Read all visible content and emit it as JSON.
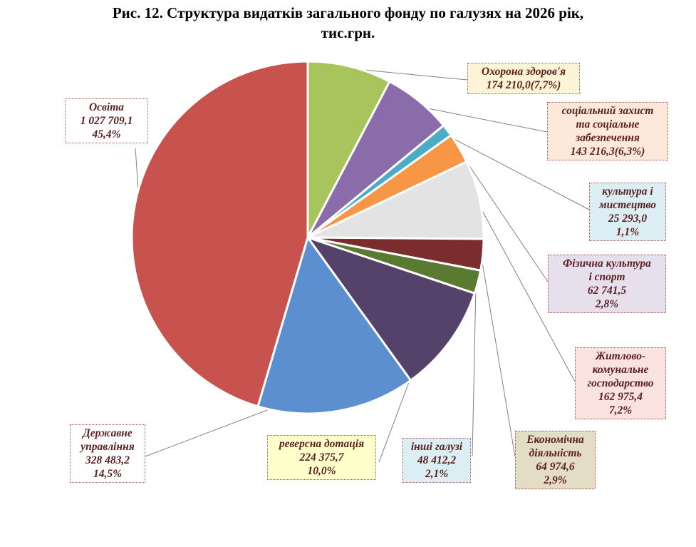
{
  "title": {
    "line1": "Рис. 12. Структура видатків загального фонду по галузях на 2026 рік,",
    "line2": "тис.грн."
  },
  "chart_data": {
    "type": "pie",
    "title": "Рис. 12. Структура видатків загального фонду по галузях на 2026 рік, тис.грн.",
    "slices": [
      {
        "name": "Охорона здоров'я",
        "value": 174210.0,
        "percent": 7.7,
        "color": "#a8c45c",
        "label_lines": [
          "Охорона здоров'я",
          "174 210,0(7,7%)"
        ]
      },
      {
        "name": "соціальний захист та соціальне забезпечення",
        "value": 143216.3,
        "percent": 6.3,
        "color": "#8a6cab",
        "label_lines": [
          "соціальний захист",
          "та соціальне",
          "забезпечення",
          "143 216,3(6,3%)"
        ]
      },
      {
        "name": "культура і мистецтво",
        "value": 25293.0,
        "percent": 1.1,
        "color": "#4bacc6",
        "label_lines": [
          "культура і",
          "мистецтво",
          "25 293,0",
          "1,1%"
        ]
      },
      {
        "name": "Фізична культура і спорт",
        "value": 62741.5,
        "percent": 2.8,
        "color": "#f79646",
        "label_lines": [
          "Фізична культура",
          "і спорт",
          "62 741,5",
          "2,8%"
        ]
      },
      {
        "name": "Житлово-комунальне господарство",
        "value": 162975.4,
        "percent": 7.2,
        "color": "#e3e3e3",
        "label_lines": [
          "Житлово-",
          "комунальне",
          "господарство",
          "162 975,4",
          "7,2%"
        ]
      },
      {
        "name": "Економічна діяльність",
        "value": 64974.6,
        "percent": 2.9,
        "color": "#7b2c2c",
        "label_lines": [
          "Економічна",
          "діяльність",
          "64 974,6",
          "2,9%"
        ]
      },
      {
        "name": "інші галузі",
        "value": 48412.2,
        "percent": 2.1,
        "color": "#5a7a32",
        "label_lines": [
          "інші галузі",
          "48 412,2",
          "2,1%"
        ]
      },
      {
        "name": "реверсна дотація",
        "value": 224375.7,
        "percent": 10.0,
        "color": "#55426a",
        "label_lines": [
          "реверсна дотація",
          "224 375,7",
          "10,0%"
        ]
      },
      {
        "name": "Державне управління",
        "value": 328483.2,
        "percent": 14.5,
        "color": "#5b8fcf",
        "label_lines": [
          "Державне",
          "управління",
          "328 483,2",
          "14,5%"
        ]
      },
      {
        "name": "Освіта",
        "value": 1027709.1,
        "percent": 45.4,
        "color": "#c8534e",
        "label_lines": [
          "Освіта",
          "1 027 709,1",
          "45,4%"
        ]
      }
    ],
    "legend": "none",
    "label_colors": {
      "text": "#5b2020",
      "fills": [
        "#fdf3d6",
        "#fde9d9",
        "#daeef3",
        "#e6e0ec",
        "#f9e2df",
        "#e4ddc5",
        "#daeef3",
        "#ffffcc",
        "#ffffff",
        "#ffffff"
      ]
    }
  }
}
